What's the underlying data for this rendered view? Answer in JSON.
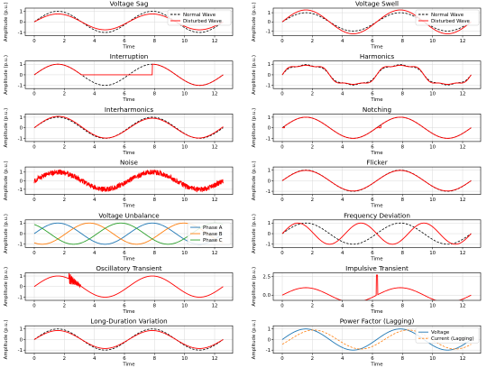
{
  "figure": {
    "columns": 2,
    "rows": 7
  },
  "chart_data": [
    {
      "type": "line",
      "title": "Voltage Sag",
      "xlabel": "Time",
      "ylabel": "Amplitude (p.u.)",
      "xlim": [
        -0.6,
        13.2
      ],
      "ylim": [
        -1.3,
        1.3
      ],
      "xticks": [
        0,
        2,
        4,
        6,
        8,
        10,
        12
      ],
      "yticks": [
        -1,
        0,
        1
      ],
      "grid": true,
      "legend": {
        "position": "top-right",
        "entries": [
          "Normal Wave",
          "Disturbed Wave"
        ]
      },
      "series": [
        {
          "name": "Normal Wave",
          "color": "#000000",
          "dash": true,
          "amplitude": 1.0
        },
        {
          "name": "Disturbed Wave",
          "color": "#ff0000",
          "amplitude": 0.75
        }
      ]
    },
    {
      "type": "line",
      "title": "Voltage Swell",
      "xlabel": "Time",
      "ylabel": "Amplitude (p.u.)",
      "xlim": [
        -0.6,
        13.2
      ],
      "ylim": [
        -1.5,
        1.5
      ],
      "xticks": [
        0,
        2,
        4,
        6,
        8,
        10,
        12
      ],
      "yticks": [
        -1,
        0,
        1
      ],
      "grid": true,
      "legend": {
        "position": "top-right",
        "entries": [
          "Normal Wave",
          "Disturbed Wave"
        ]
      },
      "series": [
        {
          "name": "Normal Wave",
          "color": "#000000",
          "dash": true,
          "amplitude": 1.0
        },
        {
          "name": "Disturbed Wave",
          "color": "#ff0000",
          "amplitude": 1.3
        }
      ]
    },
    {
      "type": "line",
      "title": "Interruption",
      "xlabel": "Time",
      "ylabel": "Amplitude (p.u.)",
      "xlim": [
        -0.6,
        13.2
      ],
      "ylim": [
        -1.3,
        1.3
      ],
      "xticks": [
        0,
        2,
        4,
        6,
        8,
        10,
        12
      ],
      "yticks": [
        -1,
        0,
        1
      ],
      "grid": true,
      "series": [
        {
          "color": "#000000",
          "dash": true,
          "amplitude": 1.0
        },
        {
          "color": "#ff0000",
          "amplitude": 1.0,
          "zero_interval": [
            3.14,
            7.85
          ]
        }
      ]
    },
    {
      "type": "line",
      "title": "Harmonics",
      "xlabel": "Time",
      "ylabel": "Amplitude (p.u.)",
      "xlim": [
        -0.6,
        13.2
      ],
      "ylim": [
        -1.3,
        1.3
      ],
      "xticks": [
        0,
        2,
        4,
        6,
        8,
        10,
        12
      ],
      "yticks": [
        -1,
        0,
        1
      ],
      "grid": true,
      "series": [
        {
          "color": "#000000",
          "dash": true,
          "amplitude": 1.0,
          "third_harmonic": 0.12,
          "fifth_harmonic": 0.08
        },
        {
          "color": "#ff0000",
          "amplitude": 1.0,
          "third_harmonic": 0.2,
          "fifth_harmonic": 0.1
        }
      ]
    },
    {
      "type": "line",
      "title": "Interharmonics",
      "xlabel": "Time",
      "ylabel": "Amplitude (p.u.)",
      "xlim": [
        -0.6,
        13.2
      ],
      "ylim": [
        -1.3,
        1.3
      ],
      "xticks": [
        0,
        2,
        4,
        6,
        8,
        10,
        12
      ],
      "yticks": [
        -1,
        0,
        1
      ],
      "grid": true,
      "series": [
        {
          "color": "#000000",
          "dash": true,
          "amplitude": 1.0
        },
        {
          "color": "#ff0000",
          "amplitude": 1.0,
          "interharmonic_amplitude": 0.1,
          "interharmonic_frequency": 0.6
        }
      ]
    },
    {
      "type": "line",
      "title": "Notching",
      "xlabel": "Time",
      "ylabel": "Amplitude (p.u.)",
      "xlim": [
        -0.6,
        13.2
      ],
      "ylim": [
        -1.3,
        1.3
      ],
      "xticks": [
        0,
        2,
        4,
        6,
        8,
        10,
        12
      ],
      "yticks": [
        -1,
        0,
        1
      ],
      "grid": true,
      "series": [
        {
          "color": "#000000",
          "dash": true,
          "amplitude": 1.0
        },
        {
          "color": "#ff0000",
          "amplitude": 1.0,
          "notch_times": [
            0.1,
            6.3,
            6.5,
            12.6
          ]
        }
      ]
    },
    {
      "type": "line",
      "title": "Noise",
      "xlabel": "Time",
      "ylabel": "Amplitude (p.u.)",
      "xlim": [
        -0.6,
        13.2
      ],
      "ylim": [
        -1.6,
        1.6
      ],
      "xticks": [
        0,
        2,
        4,
        6,
        8,
        10,
        12
      ],
      "yticks": [
        -1,
        0,
        1
      ],
      "grid": true,
      "series": [
        {
          "color": "#ff0000",
          "amplitude": 1.0,
          "noise_amplitude": 0.3
        }
      ]
    },
    {
      "type": "line",
      "title": "Flicker",
      "xlabel": "Time",
      "ylabel": "Amplitude (p.u.)",
      "xlim": [
        -0.6,
        13.2
      ],
      "ylim": [
        -1.3,
        1.3
      ],
      "xticks": [
        0,
        2,
        4,
        6,
        8,
        10,
        12
      ],
      "yticks": [
        -1,
        0,
        1
      ],
      "grid": true,
      "series": [
        {
          "color": "#000000",
          "dash": true,
          "amplitude": 1.0
        },
        {
          "color": "#ff0000",
          "amplitude": 0.97
        }
      ]
    },
    {
      "type": "line",
      "title": "Voltage Unbalance",
      "xlabel": "Time",
      "ylabel": "Amplitude (p.u.)",
      "xlim": [
        -0.6,
        13.2
      ],
      "ylim": [
        -1.3,
        1.3
      ],
      "xticks": [
        0,
        2,
        4,
        6,
        8,
        10,
        12
      ],
      "yticks": [
        -1,
        0,
        1
      ],
      "grid": true,
      "legend": {
        "position": "right",
        "entries": [
          "Phase A",
          "Phase B",
          "Phase C"
        ]
      },
      "series": [
        {
          "name": "Phase A",
          "color": "#1f77b4",
          "amplitude": 1.0,
          "phase_deg": 0
        },
        {
          "name": "Phase B",
          "color": "#ff7f0e",
          "amplitude": 1.0,
          "phase_deg": -120
        },
        {
          "name": "Phase C",
          "color": "#2ca02c",
          "amplitude": 1.0,
          "phase_deg": 120
        }
      ]
    },
    {
      "type": "line",
      "title": "Frequency Deviation",
      "xlabel": "Time",
      "ylabel": "Amplitude (p.u.)",
      "xlim": [
        -0.6,
        13.2
      ],
      "ylim": [
        -1.3,
        1.3
      ],
      "xticks": [
        0,
        2,
        4,
        6,
        8,
        10,
        12
      ],
      "yticks": [
        -1,
        0,
        1
      ],
      "grid": true,
      "series": [
        {
          "color": "#000000",
          "dash": true,
          "amplitude": 1.0,
          "frequency": 1.0
        },
        {
          "color": "#ff0000",
          "amplitude": 1.0,
          "frequency": 1.5
        }
      ]
    },
    {
      "type": "line",
      "title": "Oscillatory Transient",
      "xlabel": "Time",
      "ylabel": "Amplitude (p.u.)",
      "xlim": [
        -0.6,
        13.2
      ],
      "ylim": [
        -1.3,
        1.3
      ],
      "xticks": [
        0,
        2,
        4,
        6,
        8,
        10,
        12
      ],
      "yticks": [
        -1,
        0,
        1
      ],
      "grid": true,
      "series": [
        {
          "color": "#ff0000",
          "amplitude": 1.0,
          "transient_start": 2.3,
          "transient_end": 3.1,
          "transient_frequency": 12
        }
      ]
    },
    {
      "type": "line",
      "title": "Impulsive Transient",
      "xlabel": "Time",
      "ylabel": "Amplitude (p.u.)",
      "xlim": [
        -0.6,
        13.2
      ],
      "ylim": [
        -0.7,
        3.0
      ],
      "xticks": [
        0,
        2,
        4,
        6,
        8,
        10,
        12
      ],
      "yticks": [
        0.0,
        2.5
      ],
      "grid": true,
      "series": [
        {
          "color": "#ff0000",
          "amplitude": 1.0,
          "impulse_time": 6.3,
          "impulse_peak": 2.7
        }
      ]
    },
    {
      "type": "line",
      "title": "Long-Duration Variation",
      "xlabel": "Time",
      "ylabel": "Amplitude (p.u.)",
      "xlim": [
        -0.6,
        13.2
      ],
      "ylim": [
        -1.3,
        1.3
      ],
      "xticks": [
        0,
        2,
        4,
        6,
        8,
        10,
        12
      ],
      "yticks": [
        -1,
        0,
        1
      ],
      "grid": true,
      "series": [
        {
          "color": "#000000",
          "dash": true,
          "amplitude": 1.0
        },
        {
          "color": "#ff0000",
          "amplitude": 0.85
        }
      ]
    },
    {
      "type": "line",
      "title": "Power Factor (Lagging)",
      "xlabel": "Time",
      "ylabel": "Amplitude (p.u.)",
      "xlim": [
        -0.6,
        13.2
      ],
      "ylim": [
        -1.3,
        1.3
      ],
      "xticks": [
        0,
        2,
        4,
        6,
        8,
        10,
        12
      ],
      "yticks": [
        -1,
        0,
        1
      ],
      "grid": true,
      "legend": {
        "position": "top-right",
        "entries": [
          "Voltage",
          "Current (Lagging)"
        ]
      },
      "series": [
        {
          "name": "Voltage",
          "color": "#1f77b4",
          "amplitude": 1.0,
          "phase_deg": 0
        },
        {
          "name": "Current (Lagging)",
          "color": "#ff7f0e",
          "dash": true,
          "amplitude": 0.9,
          "phase_deg": -30
        }
      ]
    }
  ]
}
